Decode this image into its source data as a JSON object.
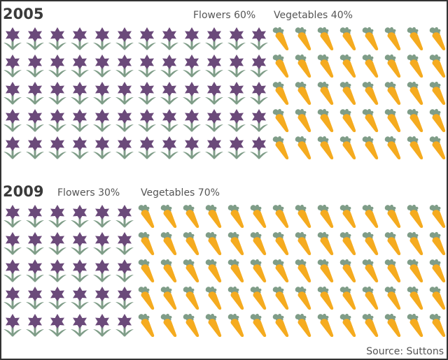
{
  "colors": {
    "flower_petal": "#6b4a7a",
    "flower_leaf": "#7f9d88",
    "carrot_body": "#f5ab1f",
    "carrot_top": "#7f9d88",
    "text": "#555555",
    "year_text": "#3a3a3a"
  },
  "panels": [
    {
      "year": "2005",
      "flowers_label": "Flowers 60%",
      "vegetables_label": "Vegetables 40%",
      "flower_columns": 12,
      "vegetable_columns": 8,
      "rows": 5
    },
    {
      "year": "2009",
      "flowers_label": "Flowers 30%",
      "vegetables_label": "Vegetables 70%",
      "flower_columns": 6,
      "vegetable_columns": 14,
      "rows": 5
    }
  ],
  "source": "Source: Suttons",
  "chart_data": {
    "type": "pictogram",
    "title": "",
    "unit": "each icon = 1% (20 columns x 5 rows = 100 icons)",
    "categories": [
      "2005",
      "2009"
    ],
    "series": [
      {
        "name": "Flowers",
        "icon": "flower-icon",
        "values": [
          60,
          30
        ]
      },
      {
        "name": "Vegetables",
        "icon": "carrot-icon",
        "values": [
          40,
          70
        ]
      }
    ],
    "labels": [
      {
        "year": "2005",
        "text": [
          "Flowers 60%",
          "Vegetables 40%"
        ]
      },
      {
        "year": "2009",
        "text": [
          "Flowers 30%",
          "Vegetables 70%"
        ]
      }
    ],
    "source": "Source: Suttons",
    "legend": "inline labels above each pictogram"
  }
}
